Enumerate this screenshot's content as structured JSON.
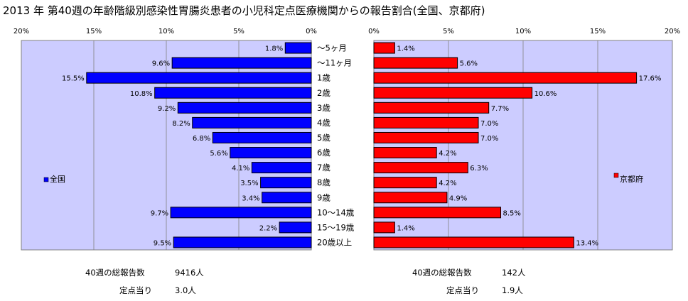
{
  "title": "2013 年 第40週の年齢階級別感染性胃腸炎患者の小児科定点医療機関からの報告割合(全国、京都府)",
  "chart_data": [
    {
      "type": "bar",
      "orientation": "horizontal",
      "direction": "right-to-left",
      "series_name": "全国",
      "color": "#0000ff",
      "categories": [
        "〜5ヶ月",
        "〜11ヶ月",
        "1歳",
        "2歳",
        "3歳",
        "4歳",
        "5歳",
        "6歳",
        "7歳",
        "8歳",
        "9歳",
        "10〜14歳",
        "15〜19歳",
        "20歳以上"
      ],
      "values": [
        1.8,
        9.6,
        15.5,
        10.8,
        9.2,
        8.2,
        6.8,
        5.6,
        4.1,
        3.5,
        3.4,
        9.7,
        2.2,
        9.5
      ],
      "value_labels": [
        "1.8%",
        "9.6%",
        "15.5%",
        "10.8%",
        "9.2%",
        "8.2%",
        "6.8%",
        "5.6%",
        "4.1%",
        "3.5%",
        "3.4%",
        "9.7%",
        "2.2%",
        "9.5%"
      ],
      "xlim": [
        0,
        20
      ],
      "ticks": [
        "20%",
        "15%",
        "10%",
        "5%",
        "0%"
      ],
      "legend_position": "left",
      "grid": true
    },
    {
      "type": "bar",
      "orientation": "horizontal",
      "direction": "left-to-right",
      "series_name": "京都府",
      "color": "#ff0000",
      "categories": [
        "〜5ヶ月",
        "〜11ヶ月",
        "1歳",
        "2歳",
        "3歳",
        "4歳",
        "5歳",
        "6歳",
        "7歳",
        "8歳",
        "9歳",
        "10〜14歳",
        "15〜19歳",
        "20歳以上"
      ],
      "values": [
        1.4,
        5.6,
        17.6,
        10.6,
        7.7,
        7.0,
        7.0,
        4.2,
        6.3,
        4.2,
        4.9,
        8.5,
        1.4,
        13.4
      ],
      "value_labels": [
        "1.4%",
        "5.6%",
        "17.6%",
        "10.6%",
        "7.7%",
        "7.0%",
        "7.0%",
        "4.2%",
        "6.3%",
        "4.2%",
        "4.9%",
        "8.5%",
        "1.4%",
        "13.4%"
      ],
      "xlim": [
        0,
        20
      ],
      "ticks": [
        "0%",
        "5%",
        "10%",
        "15%",
        "20%"
      ],
      "legend_position": "right",
      "grid": true
    }
  ],
  "plot_background": "#ccccff",
  "footer": {
    "national_total_label": "40週の総報告数",
    "national_total_value": "9416人",
    "national_per_label": "定点当り",
    "national_per_value": "3.0人",
    "kyoto_total_label": "40週の総報告数",
    "kyoto_total_value": "142人",
    "kyoto_per_label": "定点当り",
    "kyoto_per_value": "1.9人"
  }
}
